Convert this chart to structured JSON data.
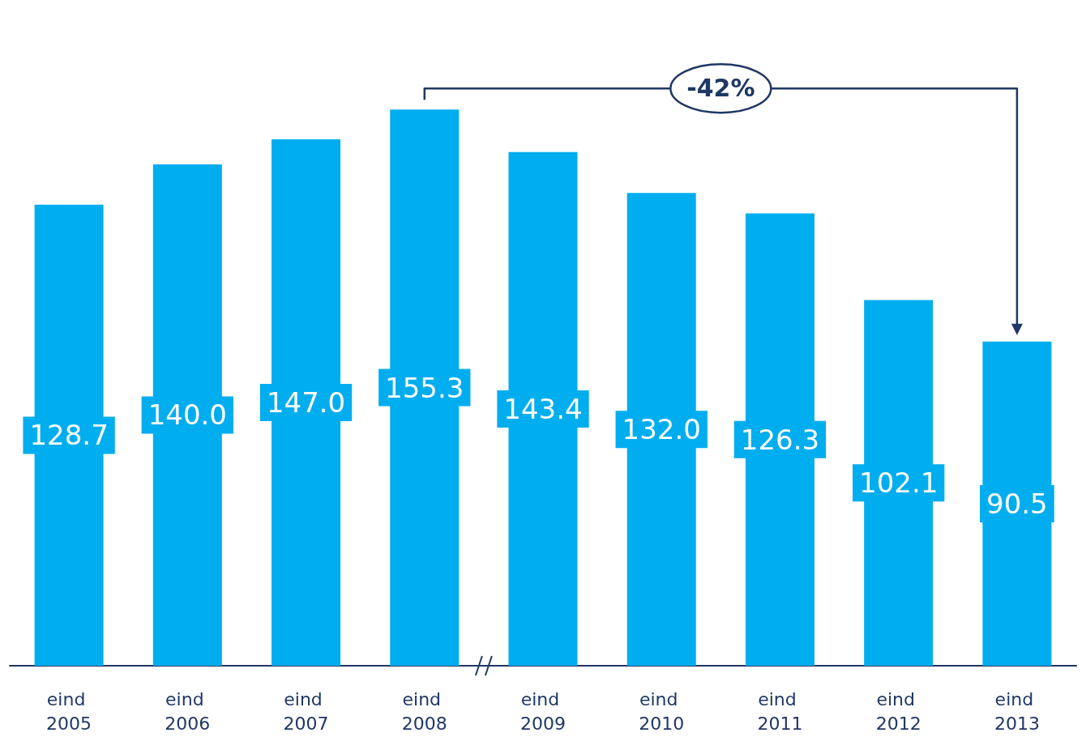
{
  "chart_data": {
    "type": "bar",
    "categories": [
      "eind 2005",
      "eind 2006",
      "eind 2007",
      "eind 2008",
      "eind 2009",
      "eind 2010",
      "eind 2011",
      "eind 2012",
      "eind 2013"
    ],
    "values": [
      128.7,
      140.0,
      147.0,
      155.3,
      143.4,
      132.0,
      126.3,
      102.1,
      90.5
    ],
    "value_labels": [
      "128.7",
      "140.0",
      "147.0",
      "155.3",
      "143.4",
      "132.0",
      "126.3",
      "102.1",
      "90.5"
    ],
    "color": "#00adef",
    "annotations": [
      "-42%"
    ]
  }
}
